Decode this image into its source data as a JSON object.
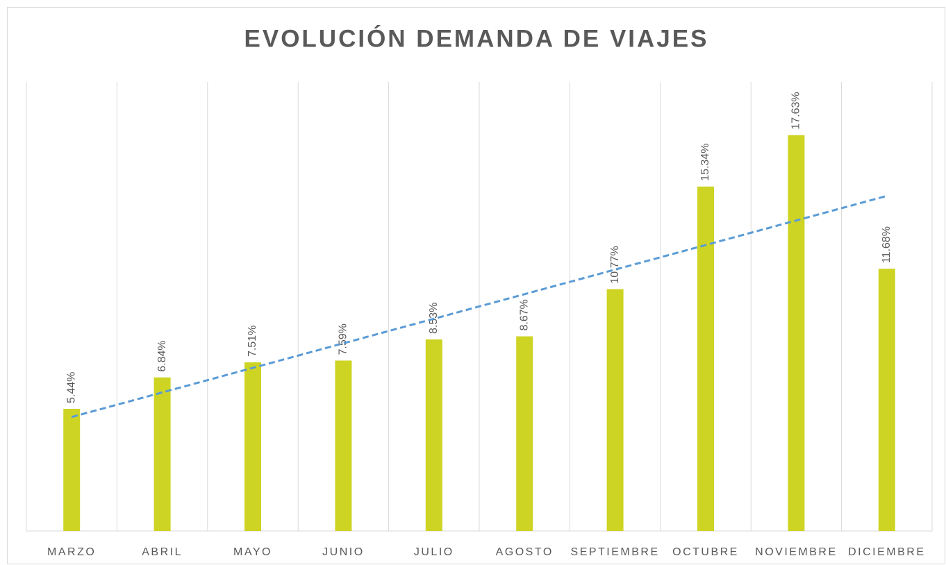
{
  "chart_data": {
    "type": "bar",
    "title": "EVOLUCIÓN DEMANDA DE VIAJES",
    "categories": [
      "MARZO",
      "ABRIL",
      "MAYO",
      "JUNIO",
      "JULIO",
      "AGOSTO",
      "SEPTIEMBRE",
      "OCTUBRE",
      "NOVIEMBRE",
      "DICIEMBRE"
    ],
    "values": [
      5.44,
      6.84,
      7.51,
      7.59,
      8.53,
      8.67,
      10.77,
      15.34,
      17.63,
      11.68
    ],
    "value_labels": [
      "5.44%",
      "6.84%",
      "7.51%",
      "7.59%",
      "8.53%",
      "8.67%",
      "10.77%",
      "15.34%",
      "17.63%",
      "11.68%"
    ],
    "color": "#cdd423",
    "trendline": {
      "type": "linear",
      "color": "#5b9bd5"
    },
    "ylim": [
      0,
      20
    ],
    "grid": "x"
  }
}
